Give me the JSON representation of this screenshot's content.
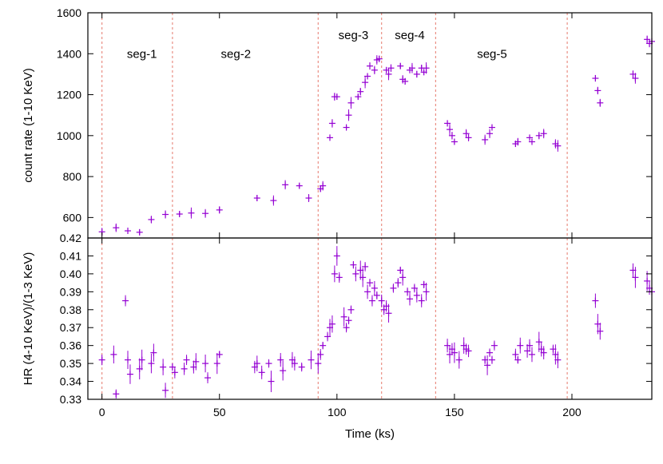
{
  "chart_data": [
    {
      "type": "scatter",
      "panel": "top",
      "ylabel": "count rate (1-10 KeV)",
      "ylim": [
        500,
        1600
      ],
      "yticks": [
        600,
        800,
        1000,
        1200,
        1400,
        1600
      ],
      "xlim": [
        -6,
        234
      ],
      "marker": "+",
      "error_bars": true,
      "segment_boundaries": [
        0,
        30,
        92,
        119,
        142,
        198
      ],
      "segment_labels": [
        {
          "label": "seg-1",
          "x": 17,
          "y": 1400
        },
        {
          "label": "seg-2",
          "x": 57,
          "y": 1400
        },
        {
          "label": "seg-3",
          "x": 107,
          "y": 1490
        },
        {
          "label": "seg-4",
          "x": 131,
          "y": 1490
        },
        {
          "label": "seg-5",
          "x": 166,
          "y": 1400
        }
      ],
      "series": [
        {
          "points": [
            [
              0,
              530
            ],
            [
              6,
              550
            ],
            [
              11,
              535
            ],
            [
              16,
              528
            ],
            [
              21,
              590
            ],
            [
              27,
              615
            ],
            [
              33,
              617
            ],
            [
              38,
              622
            ],
            [
              44,
              620
            ],
            [
              50,
              637
            ],
            [
              66,
              695
            ],
            [
              73,
              683
            ],
            [
              78,
              760
            ],
            [
              84,
              755
            ],
            [
              88,
              695
            ],
            [
              93,
              740
            ],
            [
              94,
              755
            ],
            [
              97,
              990
            ],
            [
              98,
              1060
            ],
            [
              99,
              1190
            ],
            [
              100,
              1190
            ],
            [
              104,
              1040
            ],
            [
              105,
              1100
            ],
            [
              106,
              1160
            ],
            [
              109,
              1190
            ],
            [
              110,
              1215
            ],
            [
              112,
              1260
            ],
            [
              113,
              1290
            ],
            [
              114,
              1340
            ],
            [
              116,
              1320
            ],
            [
              117,
              1370
            ],
            [
              118,
              1375
            ],
            [
              121,
              1320
            ],
            [
              122,
              1300
            ],
            [
              123,
              1330
            ],
            [
              127,
              1340
            ],
            [
              128,
              1275
            ],
            [
              129,
              1265
            ],
            [
              131,
              1320
            ],
            [
              132,
              1330
            ],
            [
              134,
              1300
            ],
            [
              136,
              1330
            ],
            [
              137,
              1310
            ],
            [
              138,
              1330
            ],
            [
              147,
              1060
            ],
            [
              148,
              1030
            ],
            [
              149,
              1000
            ],
            [
              150,
              970
            ],
            [
              155,
              1010
            ],
            [
              156,
              990
            ],
            [
              163,
              980
            ],
            [
              165,
              1010
            ],
            [
              166,
              1040
            ],
            [
              176,
              960
            ],
            [
              177,
              970
            ],
            [
              182,
              990
            ],
            [
              183,
              970
            ],
            [
              186,
              1000
            ],
            [
              188,
              1010
            ],
            [
              193,
              960
            ],
            [
              194,
              950
            ],
            [
              210,
              1280
            ],
            [
              211,
              1220
            ],
            [
              212,
              1160
            ],
            [
              226,
              1300
            ],
            [
              227,
              1280
            ],
            [
              232,
              1470
            ],
            [
              233,
              1450
            ],
            [
              234,
              1460
            ]
          ]
        }
      ]
    },
    {
      "type": "scatter",
      "panel": "bottom",
      "xlabel": "Time (ks)",
      "ylabel": "HR (4-10 KeV)/(1-3 KeV)",
      "ylim": [
        0.33,
        0.42
      ],
      "yticks": [
        0.33,
        0.34,
        0.35,
        0.36,
        0.37,
        0.38,
        0.39,
        0.4,
        0.41,
        0.42
      ],
      "xlim": [
        -6,
        234
      ],
      "xticks": [
        0,
        50,
        100,
        150,
        200
      ],
      "marker": "+",
      "error_bars": true,
      "segment_boundaries": [
        0,
        30,
        92,
        119,
        142,
        198
      ],
      "series": [
        {
          "points": [
            [
              0,
              0.352
            ],
            [
              5,
              0.355
            ],
            [
              6,
              0.333
            ],
            [
              10,
              0.385
            ],
            [
              11,
              0.352
            ],
            [
              12,
              0.344
            ],
            [
              16,
              0.347
            ],
            [
              17,
              0.352
            ],
            [
              21,
              0.35
            ],
            [
              22,
              0.356
            ],
            [
              26,
              0.348
            ],
            [
              27,
              0.335
            ],
            [
              30,
              0.348
            ],
            [
              31,
              0.345
            ],
            [
              35,
              0.347
            ],
            [
              36,
              0.352
            ],
            [
              39,
              0.348
            ],
            [
              40,
              0.351
            ],
            [
              44,
              0.35
            ],
            [
              45,
              0.342
            ],
            [
              49,
              0.35
            ],
            [
              50,
              0.355
            ],
            [
              65,
              0.348
            ],
            [
              66,
              0.35
            ],
            [
              68,
              0.345
            ],
            [
              71,
              0.35
            ],
            [
              72,
              0.34
            ],
            [
              76,
              0.352
            ],
            [
              77,
              0.346
            ],
            [
              81,
              0.352
            ],
            [
              82,
              0.35
            ],
            [
              85,
              0.348
            ],
            [
              89,
              0.352
            ],
            [
              92,
              0.35
            ],
            [
              93,
              0.355
            ],
            [
              94,
              0.36
            ],
            [
              96,
              0.365
            ],
            [
              97,
              0.37
            ],
            [
              98,
              0.372
            ],
            [
              99,
              0.4
            ],
            [
              100,
              0.41
            ],
            [
              101,
              0.398
            ],
            [
              103,
              0.376
            ],
            [
              104,
              0.37
            ],
            [
              105,
              0.374
            ],
            [
              106,
              0.38
            ],
            [
              107,
              0.405
            ],
            [
              108,
              0.4
            ],
            [
              110,
              0.402
            ],
            [
              111,
              0.398
            ],
            [
              112,
              0.404
            ],
            [
              113,
              0.39
            ],
            [
              114,
              0.395
            ],
            [
              115,
              0.385
            ],
            [
              116,
              0.392
            ],
            [
              117,
              0.388
            ],
            [
              119,
              0.385
            ],
            [
              120,
              0.38
            ],
            [
              121,
              0.382
            ],
            [
              122,
              0.378
            ],
            [
              124,
              0.392
            ],
            [
              126,
              0.395
            ],
            [
              127,
              0.402
            ],
            [
              128,
              0.398
            ],
            [
              130,
              0.39
            ],
            [
              131,
              0.386
            ],
            [
              133,
              0.392
            ],
            [
              134,
              0.388
            ],
            [
              136,
              0.385
            ],
            [
              137,
              0.394
            ],
            [
              138,
              0.39
            ],
            [
              147,
              0.36
            ],
            [
              148,
              0.355
            ],
            [
              149,
              0.358
            ],
            [
              150,
              0.356
            ],
            [
              152,
              0.352
            ],
            [
              154,
              0.36
            ],
            [
              155,
              0.358
            ],
            [
              156,
              0.357
            ],
            [
              163,
              0.352
            ],
            [
              164,
              0.349
            ],
            [
              165,
              0.356
            ],
            [
              166,
              0.352
            ],
            [
              167,
              0.36
            ],
            [
              176,
              0.355
            ],
            [
              177,
              0.352
            ],
            [
              178,
              0.36
            ],
            [
              181,
              0.357
            ],
            [
              182,
              0.36
            ],
            [
              183,
              0.355
            ],
            [
              186,
              0.362
            ],
            [
              187,
              0.358
            ],
            [
              188,
              0.356
            ],
            [
              192,
              0.358
            ],
            [
              193,
              0.355
            ],
            [
              194,
              0.352
            ],
            [
              210,
              0.385
            ],
            [
              211,
              0.372
            ],
            [
              212,
              0.368
            ],
            [
              226,
              0.402
            ],
            [
              227,
              0.398
            ],
            [
              232,
              0.396
            ],
            [
              233,
              0.392
            ],
            [
              234,
              0.39
            ]
          ]
        }
      ]
    }
  ],
  "colors": {
    "marker": "#9400d3",
    "segment_line": "#e8857a",
    "axis": "#000000"
  }
}
